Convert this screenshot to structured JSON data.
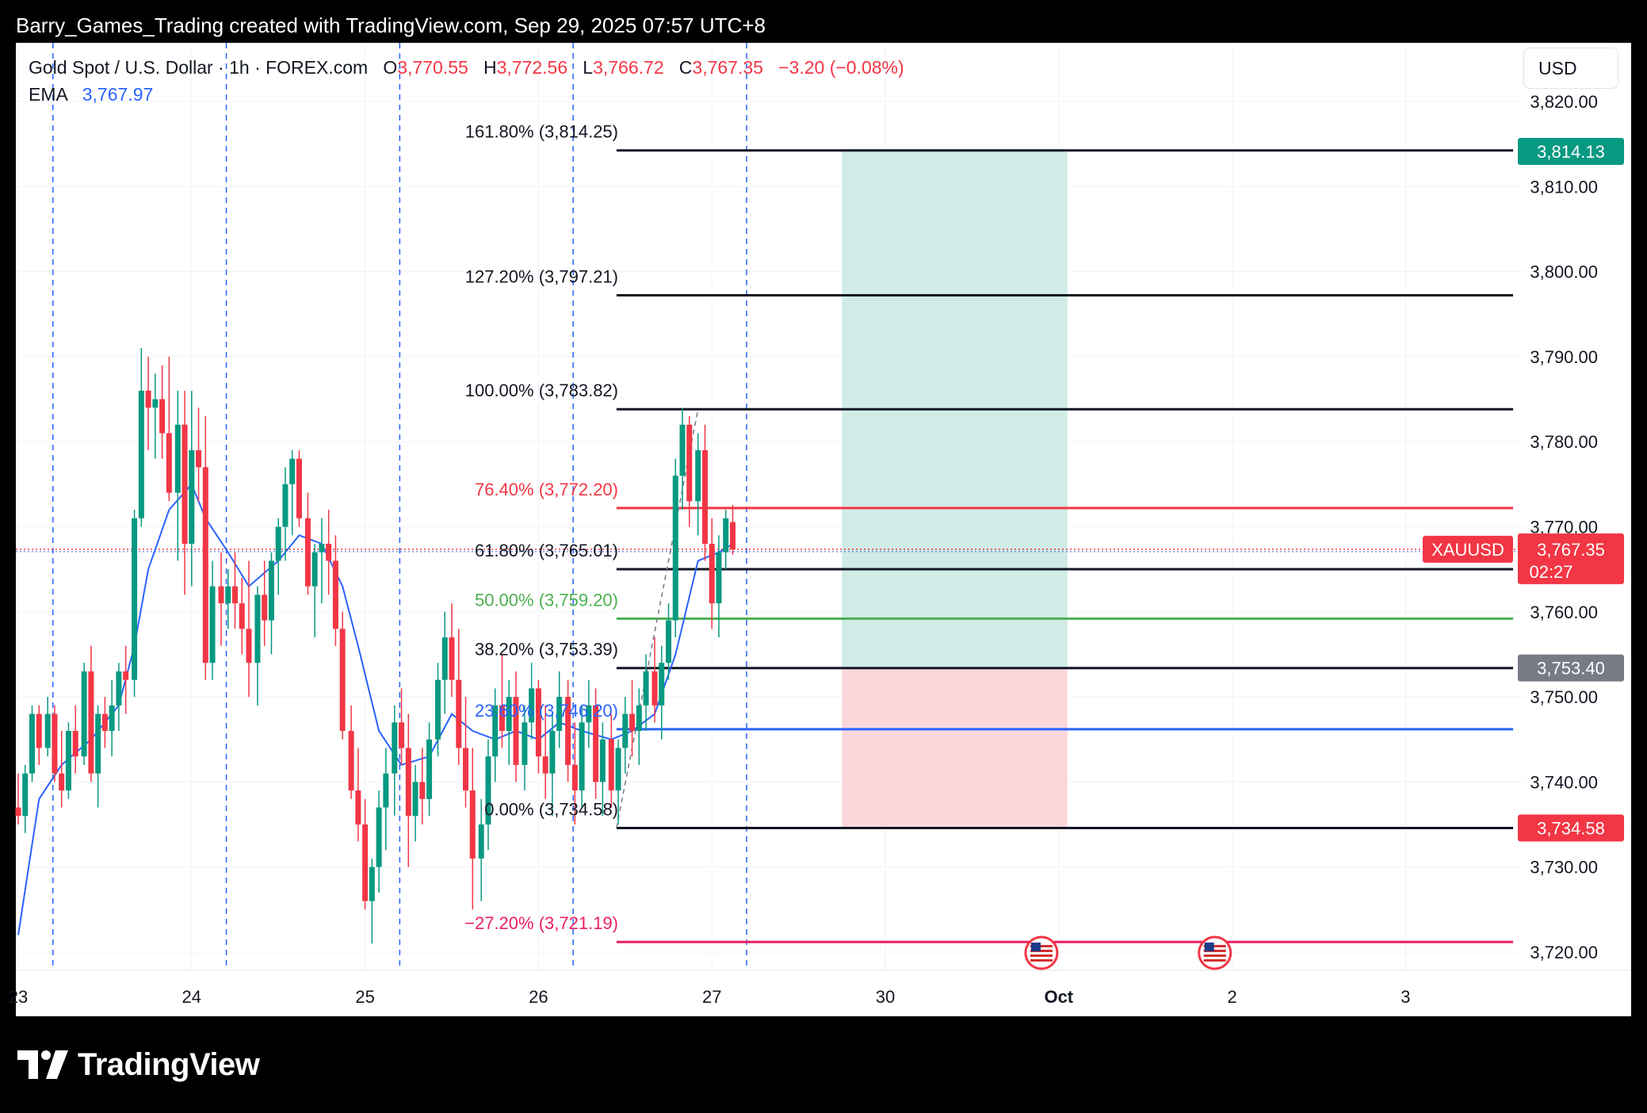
{
  "header": {
    "attribution": "Barry_Games_Trading created with TradingView.com, Sep 29, 2025 07:57 UTC+8"
  },
  "legend": {
    "symbol": "Gold Spot / U.S. Dollar · 1h · FOREX.com",
    "o_label": "O",
    "o": "3,770.55",
    "h_label": "H",
    "h": "3,772.56",
    "l_label": "L",
    "l": "3,766.72",
    "c_label": "C",
    "c": "3,767.35",
    "change": "−3.20 (−0.08%)",
    "ema_label": "EMA",
    "ema": "3,767.97"
  },
  "currency_button": "USD",
  "footer": {
    "brand": "TradingView"
  },
  "colors": {
    "up": "#089981",
    "down": "#f23645",
    "ema": "#2962ff",
    "fib_76": "#f23645",
    "fib_50": "#4caf50",
    "fib_236": "#2962ff",
    "fib_neg272": "#e91e63",
    "profit_zone": "#cfece6",
    "loss_zone": "#fbd7dc",
    "label_tp": "#089981",
    "label_entry": "#787b86",
    "label_sl": "#f23645"
  },
  "chart_data": {
    "type": "candlestick",
    "symbol_tag": "XAUUSD",
    "y_ticks": [
      "3,820.00",
      "3,810.00",
      "3,800.00",
      "3,790.00",
      "3,780.00",
      "3,770.00",
      "3,760.00",
      "3,750.00",
      "3,740.00",
      "3,730.00",
      "3,720.00"
    ],
    "y_tick_values": [
      3820,
      3810,
      3800,
      3790,
      3780,
      3770,
      3760,
      3750,
      3740,
      3730,
      3720
    ],
    "x_ticks": [
      {
        "label": "23",
        "day": 23
      },
      {
        "label": "24",
        "day": 24
      },
      {
        "label": "25",
        "day": 25
      },
      {
        "label": "26",
        "day": 26
      },
      {
        "label": "27",
        "day": 27
      },
      {
        "label": "30",
        "day": 28
      },
      {
        "label": "Oct",
        "day": 29
      },
      {
        "label": "2",
        "day": 30
      },
      {
        "label": "3",
        "day": 31
      }
    ],
    "session_separators": [
      23.2,
      24.2,
      25.2,
      26.2,
      27.2
    ],
    "fib_levels": [
      {
        "label": "161.80% (3,814.25)",
        "price": 3814.25,
        "color": "#131722"
      },
      {
        "label": "127.20% (3,797.21)",
        "price": 3797.21,
        "color": "#131722"
      },
      {
        "label": "100.00% (3,783.82)",
        "price": 3783.82,
        "color": "#131722"
      },
      {
        "label": "76.40% (3,772.20)",
        "price": 3772.2,
        "color": "#f23645"
      },
      {
        "label": "61.80% (3,765.01)",
        "price": 3765.01,
        "color": "#131722"
      },
      {
        "label": "50.00% (3,759.20)",
        "price": 3759.2,
        "color": "#4caf50"
      },
      {
        "label": "38.20% (3,753.39)",
        "price": 3753.39,
        "color": "#131722"
      },
      {
        "label": "23.60% (3,746.20)",
        "price": 3746.2,
        "color": "#2962ff"
      },
      {
        "label": "0.00% (3,734.58)",
        "price": 3734.58,
        "color": "#131722"
      },
      {
        "label": "−27.20% (3,721.19)",
        "price": 3721.19,
        "color": "#e91e63"
      }
    ],
    "fib_start_day": 26.45,
    "fib_end_day": 31.62,
    "fib_trend": {
      "from_day": 26.45,
      "from_price": 3734.58,
      "to_day": 26.92,
      "to_price": 3783.82
    },
    "position": {
      "from_day": 27.75,
      "to_day": 29.05,
      "target": 3814.13,
      "entry": 3753.4,
      "stop": 3734.58
    },
    "price_labels": [
      {
        "text": "3,814.13",
        "price": 3814.13,
        "color": "#089981"
      },
      {
        "text": "3,753.40",
        "price": 3753.4,
        "color": "#787b86"
      },
      {
        "text": "3,734.58",
        "price": 3734.58,
        "color": "#f23645"
      }
    ],
    "last_price": {
      "text": "3,767.35",
      "countdown": "02:27",
      "price": 3767.35
    },
    "event_days": [
      28.9,
      29.9
    ],
    "candles": [
      [
        23.0,
        3737,
        3741,
        3735,
        3736
      ],
      [
        23.04,
        3736,
        3742,
        3734,
        3741
      ],
      [
        23.08,
        3741,
        3749,
        3740,
        3748
      ],
      [
        23.12,
        3748,
        3749,
        3742,
        3744
      ],
      [
        23.17,
        3744,
        3750,
        3743,
        3748
      ],
      [
        23.21,
        3748,
        3749,
        3740,
        3741
      ],
      [
        23.25,
        3741,
        3746,
        3737,
        3739
      ],
      [
        23.29,
        3739,
        3747,
        3738,
        3746
      ],
      [
        23.33,
        3746,
        3749,
        3741,
        3743
      ],
      [
        23.38,
        3743,
        3754,
        3742,
        3753
      ],
      [
        23.42,
        3753,
        3756,
        3740,
        3741
      ],
      [
        23.46,
        3741,
        3749,
        3737,
        3748
      ],
      [
        23.5,
        3748,
        3750,
        3744,
        3746
      ],
      [
        23.54,
        3746,
        3752,
        3743,
        3749
      ],
      [
        23.58,
        3749,
        3754,
        3746,
        3753
      ],
      [
        23.62,
        3753,
        3756,
        3748,
        3752
      ],
      [
        23.67,
        3752,
        3772,
        3750,
        3771
      ],
      [
        23.71,
        3771,
        3791,
        3770,
        3786
      ],
      [
        23.75,
        3786,
        3790,
        3779,
        3784
      ],
      [
        23.79,
        3784,
        3788,
        3778,
        3785
      ],
      [
        23.83,
        3785,
        3789,
        3778,
        3781
      ],
      [
        23.87,
        3781,
        3790,
        3773,
        3774
      ],
      [
        23.92,
        3774,
        3786,
        3766,
        3782
      ],
      [
        23.96,
        3782,
        3786,
        3762,
        3768
      ],
      [
        24.0,
        3768,
        3786,
        3763,
        3779
      ],
      [
        24.04,
        3779,
        3784,
        3773,
        3777
      ],
      [
        24.08,
        3777,
        3783,
        3752,
        3754
      ],
      [
        24.12,
        3754,
        3766,
        3752,
        3763
      ],
      [
        24.17,
        3763,
        3767,
        3756,
        3761
      ],
      [
        24.21,
        3761,
        3765,
        3758,
        3763
      ],
      [
        24.25,
        3763,
        3767,
        3758,
        3761
      ],
      [
        24.29,
        3761,
        3764,
        3755,
        3758
      ],
      [
        24.33,
        3758,
        3766,
        3750,
        3754
      ],
      [
        24.38,
        3754,
        3763,
        3749,
        3762
      ],
      [
        24.42,
        3762,
        3766,
        3756,
        3759
      ],
      [
        24.46,
        3759,
        3767,
        3755,
        3766
      ],
      [
        24.5,
        3766,
        3771,
        3762,
        3770
      ],
      [
        24.54,
        3770,
        3777,
        3766,
        3775
      ],
      [
        24.58,
        3775,
        3779,
        3769,
        3778
      ],
      [
        24.62,
        3778,
        3779,
        3770,
        3771
      ],
      [
        24.67,
        3771,
        3774,
        3762,
        3763
      ],
      [
        24.71,
        3763,
        3768,
        3757,
        3767
      ],
      [
        24.75,
        3767,
        3771,
        3761,
        3768
      ],
      [
        24.79,
        3768,
        3772,
        3762,
        3766
      ],
      [
        24.83,
        3766,
        3769,
        3756,
        3758
      ],
      [
        24.87,
        3758,
        3760,
        3745,
        3746
      ],
      [
        24.92,
        3746,
        3749,
        3738,
        3739
      ],
      [
        24.96,
        3739,
        3744,
        3733,
        3735
      ],
      [
        25.0,
        3735,
        3738,
        3725,
        3726
      ],
      [
        25.04,
        3726,
        3731,
        3721,
        3730
      ],
      [
        25.08,
        3730,
        3739,
        3727,
        3737
      ],
      [
        25.12,
        3737,
        3744,
        3732,
        3741
      ],
      [
        25.17,
        3741,
        3749,
        3736,
        3747
      ],
      [
        25.21,
        3747,
        3751,
        3742,
        3744
      ],
      [
        25.25,
        3744,
        3748,
        3730,
        3736
      ],
      [
        25.29,
        3736,
        3742,
        3733,
        3740
      ],
      [
        25.33,
        3740,
        3744,
        3735,
        3738
      ],
      [
        25.37,
        3738,
        3747,
        3736,
        3745
      ],
      [
        25.42,
        3745,
        3754,
        3743,
        3752
      ],
      [
        25.46,
        3752,
        3760,
        3748,
        3757
      ],
      [
        25.5,
        3757,
        3761,
        3750,
        3752
      ],
      [
        25.54,
        3752,
        3758,
        3742,
        3744
      ],
      [
        25.58,
        3744,
        3750,
        3737,
        3739
      ],
      [
        25.62,
        3739,
        3744,
        3725,
        3731
      ],
      [
        25.67,
        3731,
        3738,
        3726,
        3735
      ],
      [
        25.71,
        3735,
        3745,
        3732,
        3743
      ],
      [
        25.75,
        3743,
        3751,
        3740,
        3749
      ],
      [
        25.79,
        3749,
        3755,
        3744,
        3746
      ],
      [
        25.83,
        3746,
        3752,
        3742,
        3750
      ],
      [
        25.87,
        3750,
        3753,
        3740,
        3742
      ],
      [
        25.92,
        3742,
        3749,
        3739,
        3747
      ],
      [
        25.96,
        3747,
        3754,
        3745,
        3751
      ],
      [
        26.0,
        3751,
        3752,
        3741,
        3743
      ],
      [
        26.04,
        3743,
        3749,
        3738,
        3741
      ],
      [
        26.08,
        3741,
        3748,
        3736,
        3746
      ],
      [
        26.12,
        3746,
        3753,
        3744,
        3750
      ],
      [
        26.17,
        3750,
        3752,
        3740,
        3742
      ],
      [
        26.21,
        3742,
        3747,
        3735,
        3739
      ],
      [
        26.25,
        3739,
        3749,
        3737,
        3747
      ],
      [
        26.29,
        3747,
        3752,
        3744,
        3749
      ],
      [
        26.33,
        3749,
        3751,
        3738,
        3740
      ],
      [
        26.37,
        3740,
        3747,
        3736,
        3745
      ],
      [
        26.42,
        3745,
        3748,
        3737,
        3739
      ],
      [
        26.46,
        3739,
        3745,
        3735,
        3744
      ],
      [
        26.5,
        3744,
        3750,
        3741,
        3748
      ],
      [
        26.54,
        3748,
        3752,
        3743,
        3746
      ],
      [
        26.58,
        3746,
        3751,
        3742,
        3749
      ],
      [
        26.62,
        3749,
        3755,
        3746,
        3753
      ],
      [
        26.67,
        3753,
        3757,
        3747,
        3749
      ],
      [
        26.71,
        3749,
        3756,
        3745,
        3754
      ],
      [
        26.75,
        3754,
        3761,
        3752,
        3759
      ],
      [
        26.79,
        3759,
        3778,
        3757,
        3776
      ],
      [
        26.83,
        3776,
        3784,
        3772,
        3782
      ],
      [
        26.87,
        3782,
        3783,
        3770,
        3773
      ],
      [
        26.92,
        3773,
        3781,
        3769,
        3779
      ],
      [
        26.96,
        3779,
        3782,
        3766,
        3768
      ],
      [
        27.0,
        3768,
        3771,
        3758,
        3761
      ],
      [
        27.04,
        3761,
        3769,
        3757,
        3767
      ],
      [
        27.08,
        3767,
        3772,
        3765,
        3771
      ],
      [
        27.12,
        3770.55,
        3772.56,
        3766.72,
        3767.35
      ]
    ],
    "ema_line": [
      [
        23.0,
        3722
      ],
      [
        23.12,
        3738
      ],
      [
        23.25,
        3742
      ],
      [
        23.42,
        3745
      ],
      [
        23.58,
        3749
      ],
      [
        23.67,
        3756
      ],
      [
        23.75,
        3765
      ],
      [
        23.87,
        3772
      ],
      [
        24.0,
        3775
      ],
      [
        24.08,
        3771
      ],
      [
        24.21,
        3767
      ],
      [
        24.33,
        3763
      ],
      [
        24.5,
        3766
      ],
      [
        24.62,
        3769
      ],
      [
        24.75,
        3768
      ],
      [
        24.87,
        3763
      ],
      [
        24.96,
        3756
      ],
      [
        25.08,
        3746
      ],
      [
        25.21,
        3742
      ],
      [
        25.37,
        3743
      ],
      [
        25.5,
        3748
      ],
      [
        25.62,
        3746
      ],
      [
        25.75,
        3745
      ],
      [
        25.87,
        3746
      ],
      [
        26.0,
        3745
      ],
      [
        26.12,
        3747
      ],
      [
        26.25,
        3746
      ],
      [
        26.42,
        3745
      ],
      [
        26.54,
        3746
      ],
      [
        26.67,
        3748
      ],
      [
        26.79,
        3755
      ],
      [
        26.92,
        3766
      ],
      [
        27.04,
        3767
      ],
      [
        27.12,
        3767.97
      ]
    ]
  }
}
